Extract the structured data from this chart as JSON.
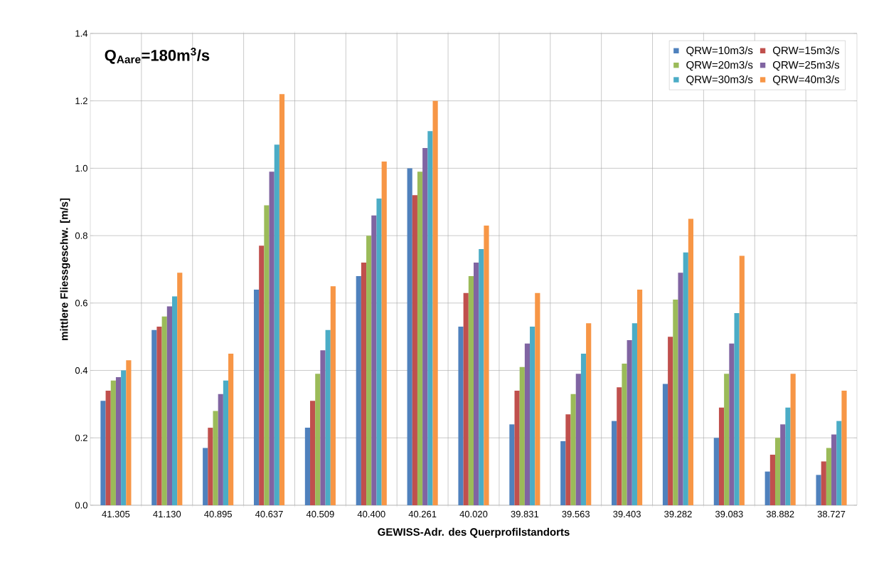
{
  "chart_data": {
    "type": "bar",
    "title": "Q$_{Aare}$=180m$^{3}$/s",
    "xlabel": "GEWISS-Adr. des Querprofilstandorts",
    "ylabel": "mittlere Fliessgeschw. [m/s]",
    "categories": [
      "41.305",
      "41.130",
      "40.895",
      "40.637",
      "40.509",
      "40.400",
      "40.261",
      "40.020",
      "39.831",
      "39.563",
      "39.403",
      "39.282",
      "39.083",
      "38.882",
      "38.727"
    ],
    "series": [
      {
        "name": "QRW=10m3/s",
        "color": "#4f81bd",
        "values": [
          0.31,
          0.52,
          0.17,
          0.64,
          0.23,
          0.68,
          1.0,
          0.53,
          0.24,
          0.19,
          0.25,
          0.36,
          0.2,
          0.1,
          0.09
        ]
      },
      {
        "name": "QRW=15m3/s",
        "color": "#c0504d",
        "values": [
          0.34,
          0.53,
          0.23,
          0.77,
          0.31,
          0.72,
          0.92,
          0.63,
          0.34,
          0.27,
          0.35,
          0.5,
          0.29,
          0.15,
          0.13
        ]
      },
      {
        "name": "QRW=20m3/s",
        "color": "#9bbb59",
        "values": [
          0.37,
          0.56,
          0.28,
          0.89,
          0.39,
          0.8,
          0.99,
          0.68,
          0.41,
          0.33,
          0.42,
          0.61,
          0.39,
          0.2,
          0.17
        ]
      },
      {
        "name": "QRW=25m3/s",
        "color": "#8064a2",
        "values": [
          0.38,
          0.59,
          0.33,
          0.99,
          0.46,
          0.86,
          1.06,
          0.72,
          0.48,
          0.39,
          0.49,
          0.69,
          0.48,
          0.24,
          0.21
        ]
      },
      {
        "name": "QRW=30m3/s",
        "color": "#4bacc6",
        "values": [
          0.4,
          0.62,
          0.37,
          1.07,
          0.52,
          0.91,
          1.11,
          0.76,
          0.53,
          0.45,
          0.54,
          0.75,
          0.57,
          0.29,
          0.25
        ]
      },
      {
        "name": "QRW=40m3/s",
        "color": "#f79646",
        "values": [
          0.43,
          0.69,
          0.45,
          1.22,
          0.65,
          1.02,
          1.2,
          0.83,
          0.63,
          0.54,
          0.64,
          0.85,
          0.74,
          0.39,
          0.34
        ]
      }
    ],
    "ylim": [
      0,
      1.4
    ],
    "yticks": [
      {
        "value": 0,
        "label": "0.0"
      },
      {
        "value": 0.2,
        "label": "0.2"
      },
      {
        "value": 0.4,
        "label": "0.4"
      },
      {
        "value": 0.6,
        "label": "0.6"
      },
      {
        "value": 0.8,
        "label": "0.8"
      },
      {
        "value": 1.0,
        "label": "1.0"
      },
      {
        "value": 1.2,
        "label": "1.2"
      },
      {
        "value": 1.4,
        "label": "1.4"
      }
    ],
    "grid": true,
    "legend": "top right"
  }
}
